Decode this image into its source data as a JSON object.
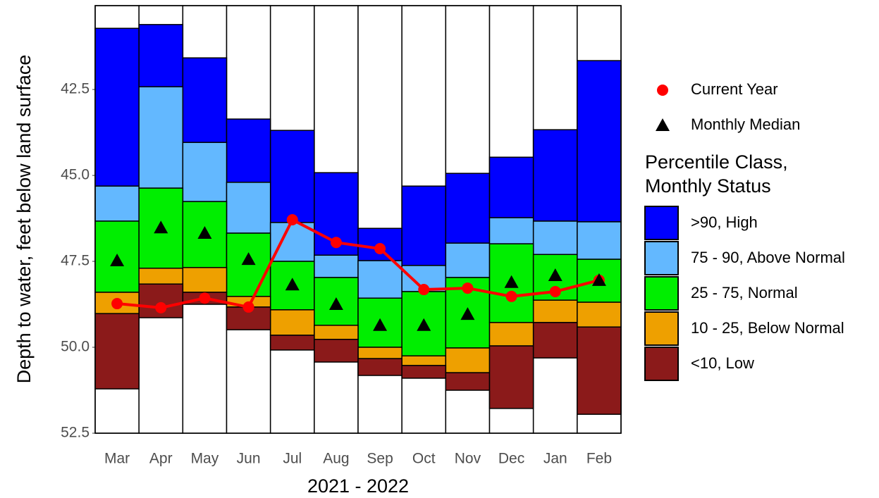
{
  "chart_data": {
    "type": "floating_bar",
    "y_axis_label": "Depth to water, feet below land surface",
    "x_axis_label": "2021 - 2022",
    "categories": [
      "Mar",
      "Apr",
      "May",
      "Jun",
      "Jul",
      "Aug",
      "Sep",
      "Oct",
      "Nov",
      "Dec",
      "Jan",
      "Feb"
    ],
    "ylim": [
      40.06,
      52.5
    ],
    "y_inverted": true,
    "yticks": [
      42.5,
      {
        "value": 45,
        "label": "45.0"
      },
      47.5,
      {
        "value": 50,
        "label": "50.0"
      },
      52.5
    ],
    "grid": false,
    "legend_title": [
      "Percentile Class,",
      "Monthly Status"
    ],
    "series": [
      {
        "name": ">90, High",
        "color": "#0000ff",
        "values": [
          [
            40.72,
            45.31
          ],
          [
            40.61,
            42.42
          ],
          [
            41.58,
            44.04
          ],
          [
            43.36,
            45.2
          ],
          [
            43.69,
            46.37
          ],
          [
            44.92,
            47.32
          ],
          [
            46.54,
            47.48
          ],
          [
            45.31,
            47.62
          ],
          [
            44.94,
            46.97
          ],
          [
            44.47,
            46.23
          ],
          [
            43.67,
            46.33
          ],
          [
            41.66,
            46.35
          ]
        ]
      },
      {
        "name": "75 - 90, Above Normal",
        "color": "#63b8ff",
        "values": [
          [
            45.31,
            46.33
          ],
          [
            42.42,
            45.37
          ],
          [
            44.04,
            45.76
          ],
          [
            45.2,
            46.68
          ],
          [
            46.37,
            47.5
          ],
          [
            47.32,
            47.97
          ],
          [
            47.48,
            48.57
          ],
          [
            47.62,
            48.38
          ],
          [
            46.97,
            47.97
          ],
          [
            46.23,
            46.99
          ],
          [
            46.33,
            47.3
          ],
          [
            46.35,
            47.44
          ]
        ]
      },
      {
        "name": "25 - 75, Normal",
        "color": "#00ee00",
        "values": [
          [
            46.33,
            48.4
          ],
          [
            45.37,
            47.7
          ],
          [
            45.76,
            47.68
          ],
          [
            46.68,
            48.52
          ],
          [
            47.5,
            48.91
          ],
          [
            47.97,
            49.36
          ],
          [
            48.57,
            50.0
          ],
          [
            48.38,
            50.25
          ],
          [
            47.97,
            50.02
          ],
          [
            46.99,
            49.28
          ],
          [
            47.3,
            48.63
          ],
          [
            47.44,
            48.69
          ]
        ]
      },
      {
        "name": "10 - 25, Below Normal",
        "color": "#eea000",
        "values": [
          [
            48.4,
            49.02
          ],
          [
            47.7,
            48.16
          ],
          [
            47.68,
            48.4
          ],
          [
            48.52,
            48.83
          ],
          [
            48.91,
            49.65
          ],
          [
            49.36,
            49.77
          ],
          [
            50.0,
            50.33
          ],
          [
            50.25,
            50.53
          ],
          [
            50.02,
            50.74
          ],
          [
            49.28,
            49.96
          ],
          [
            48.63,
            49.28
          ],
          [
            48.69,
            49.41
          ]
        ]
      },
      {
        "name": "<10, Low",
        "color": "#8b1a1a",
        "values": [
          [
            49.02,
            51.21
          ],
          [
            48.16,
            49.14
          ],
          [
            48.4,
            48.75
          ],
          [
            48.83,
            49.49
          ],
          [
            49.65,
            50.08
          ],
          [
            49.77,
            50.43
          ],
          [
            50.33,
            50.82
          ],
          [
            50.53,
            50.9
          ],
          [
            50.74,
            51.25
          ],
          [
            49.96,
            51.78
          ],
          [
            49.28,
            50.31
          ],
          [
            49.41,
            51.95
          ]
        ]
      }
    ],
    "points": [
      {
        "name": "Current Year",
        "marker": "circle",
        "color": "#ff0000",
        "line": true,
        "values": [
          48.73,
          48.85,
          48.57,
          48.83,
          46.29,
          46.95,
          47.13,
          48.32,
          48.28,
          48.52,
          48.38,
          48.05
        ]
      },
      {
        "name": "Monthly Median",
        "marker": "triangle",
        "color": "#000000",
        "line": false,
        "values": [
          47.48,
          46.52,
          46.68,
          47.44,
          48.18,
          48.75,
          49.36,
          49.36,
          49.04,
          48.11,
          47.91,
          48.05
        ]
      }
    ]
  }
}
